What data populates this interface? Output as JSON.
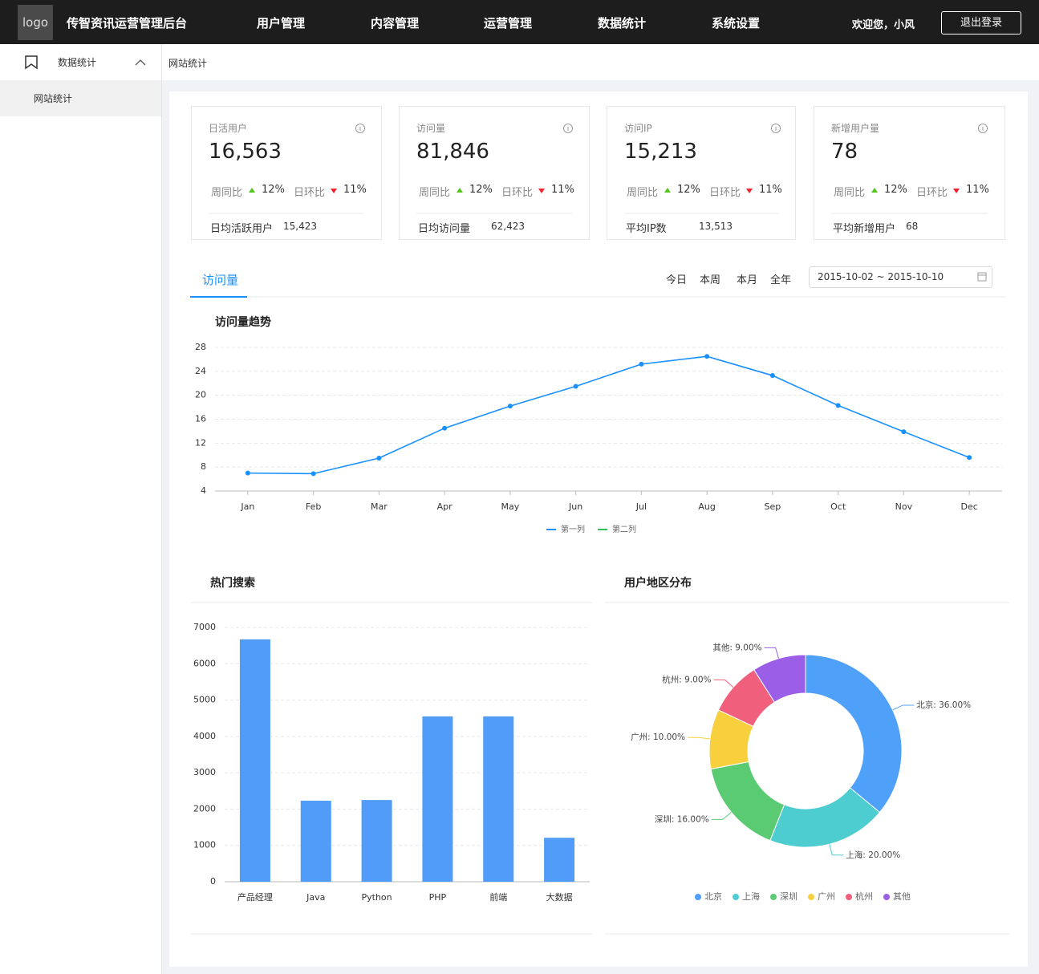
{
  "header": {
    "logo": "logo",
    "title": "传智资讯运营管理后台",
    "nav": [
      "用户管理",
      "内容管理",
      "运营管理",
      "数据统计",
      "系统设置"
    ],
    "welcome": "欢迎您，小风",
    "logout": "退出登录"
  },
  "sidebar": {
    "menu": "数据统计",
    "submenu": "网站统计"
  },
  "breadcrumb": "网站统计",
  "cards": [
    {
      "label": "日活用户",
      "value": "16,563",
      "week_label": "周同比",
      "week_value": "12%",
      "day_label": "日环比",
      "day_value": "11%",
      "footer_label": "日均活跃用户",
      "footer_value": "15,423"
    },
    {
      "label": "访问量",
      "value": "81,846",
      "week_label": "周同比",
      "week_value": "12%",
      "day_label": "日环比",
      "day_value": "11%",
      "footer_label": "日均访问量",
      "footer_value": "62,423"
    },
    {
      "label": "访问IP",
      "value": "15,213",
      "week_label": "周同比",
      "week_value": "12%",
      "day_label": "日环比",
      "day_value": "11%",
      "footer_label": "平均IP数",
      "footer_value": "13,513"
    },
    {
      "label": "新增用户量",
      "value": "78",
      "week_label": "周同比",
      "week_value": "12%",
      "day_label": "日环比",
      "day_value": "11%",
      "footer_label": "平均新增用户",
      "footer_value": "68"
    }
  ],
  "tabs": {
    "active": "访问量",
    "ranges": [
      "今日",
      "本周",
      "本月",
      "全年"
    ],
    "date_range": "2015-10-02 ~ 2015-10-10"
  },
  "chart_data": [
    {
      "type": "line",
      "title": "访问量趋势",
      "categories": [
        "Jan",
        "Feb",
        "Mar",
        "Apr",
        "May",
        "Jun",
        "Jul",
        "Aug",
        "Sep",
        "Oct",
        "Nov",
        "Dec"
      ],
      "series": [
        {
          "name": "第一列",
          "color": "#1890ff",
          "values": [
            7.0,
            6.9,
            9.5,
            14.5,
            18.2,
            21.5,
            25.2,
            26.5,
            23.3,
            18.3,
            13.9,
            9.6
          ]
        },
        {
          "name": "第二列",
          "color": "#2fc25b",
          "values": [
            null,
            null,
            null,
            null,
            null,
            null,
            null,
            null,
            null,
            null,
            null,
            null
          ]
        }
      ],
      "ylim": [
        4,
        28
      ],
      "yticks": [
        4,
        8,
        12,
        16,
        20,
        24,
        28
      ],
      "grid": true
    },
    {
      "type": "bar",
      "title": "热门搜索",
      "categories": [
        "产品经理",
        "Java",
        "Python",
        "PHP",
        "前端",
        "大数据"
      ],
      "values": [
        6670,
        2230,
        2250,
        4550,
        4550,
        1210
      ],
      "color": "#519cf8",
      "ylim": [
        0,
        7000
      ],
      "yticks": [
        0,
        1000,
        2000,
        3000,
        4000,
        5000,
        6000,
        7000
      ],
      "grid": true
    },
    {
      "type": "pie",
      "title": "用户地区分布",
      "categories": [
        "北京",
        "上海",
        "深圳",
        "广州",
        "杭州",
        "其他"
      ],
      "values": [
        36,
        20,
        16,
        10,
        9,
        9
      ],
      "value_labels": [
        "北京: 36.00%",
        "上海: 20.00%",
        "深圳: 16.00%",
        "广州: 10.00%",
        "杭州: 9.00%",
        "其他: 9.00%"
      ],
      "colors": [
        "#4fa0f8",
        "#4ecdd0",
        "#5acb72",
        "#f8cf3d",
        "#f05f7c",
        "#9a5fe6"
      ],
      "donut": true
    }
  ]
}
